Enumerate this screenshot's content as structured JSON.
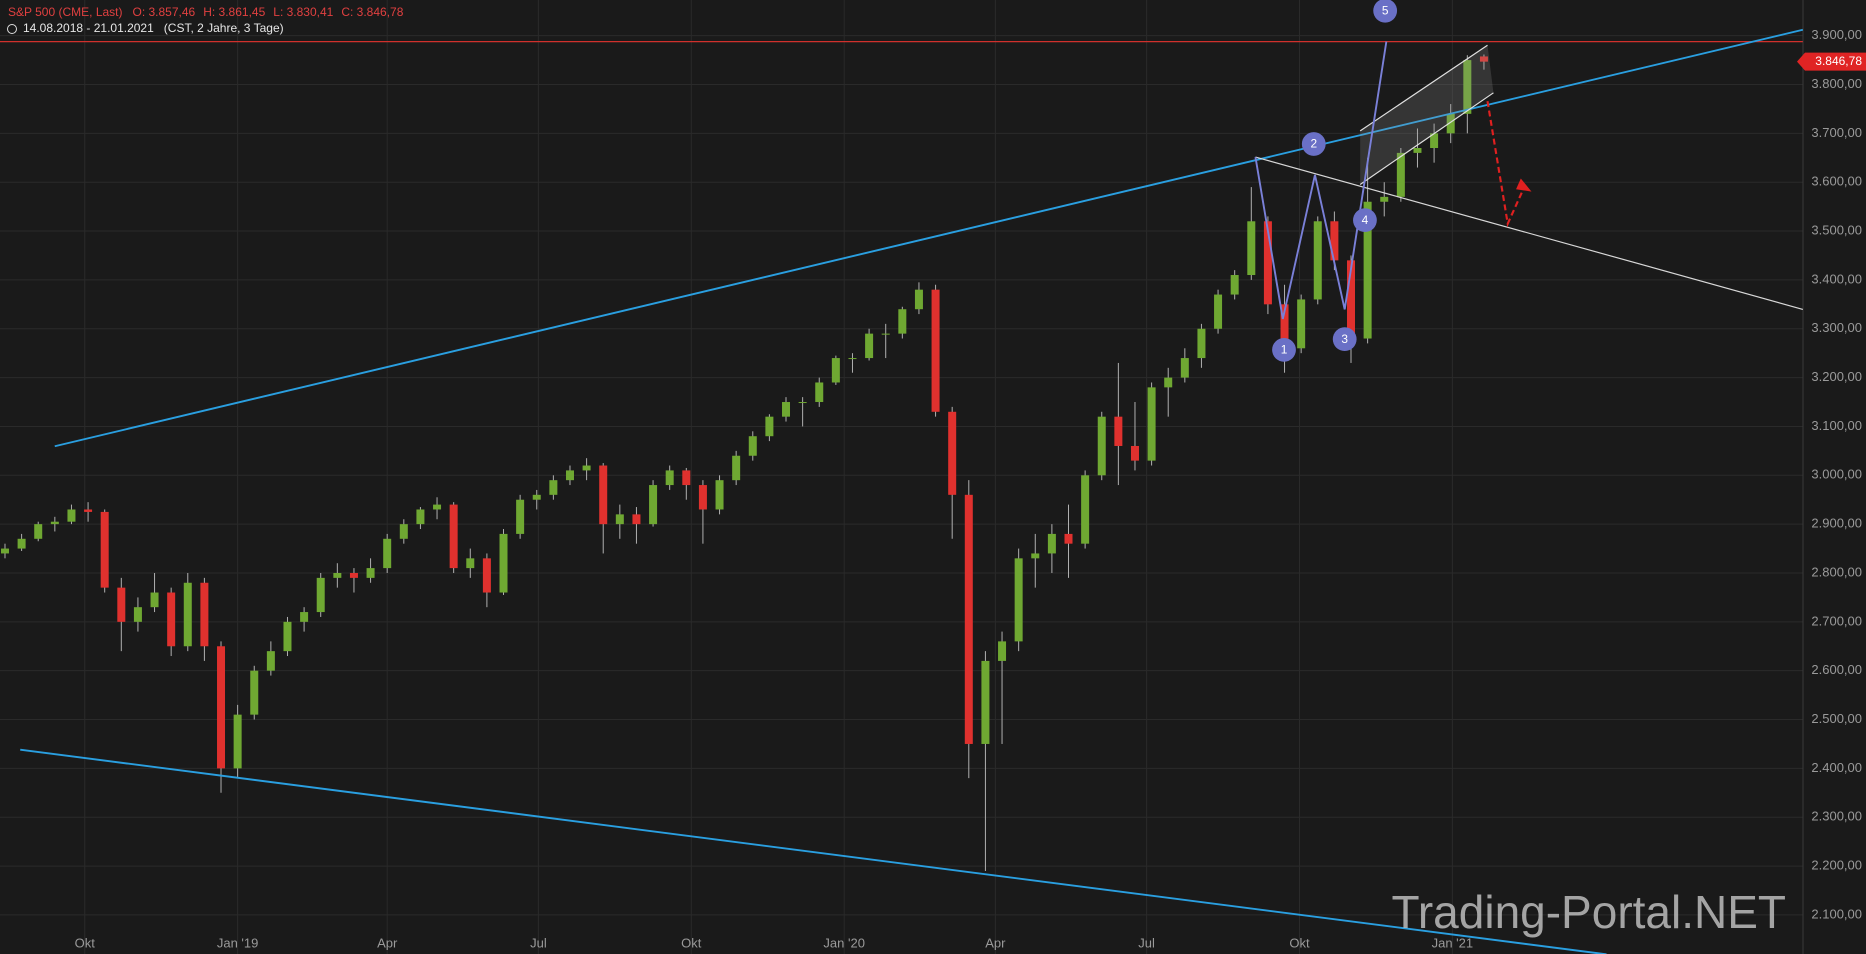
{
  "header": {
    "instrument": "S&P 500 (CME, Last)",
    "open": "O: 3.857,46",
    "high": "H: 3.861,45",
    "low": "L: 3.830,41",
    "close": "C: 3.846,78",
    "range": "14.08.2018 - 21.01.2021",
    "info": "(CST, 2 Jahre, 3 Tage)"
  },
  "chart_data": {
    "type": "candlestick",
    "x": [
      0,
      10,
      20,
      30,
      40,
      50,
      60,
      70,
      80,
      90,
      100,
      110,
      120,
      130,
      140,
      150,
      160,
      170,
      180,
      190,
      200,
      210,
      220,
      230,
      240,
      250,
      260,
      270,
      280,
      290,
      300,
      310,
      320,
      330,
      340,
      350,
      360,
      370,
      380,
      390,
      400,
      410,
      420,
      430,
      440,
      450,
      460,
      470,
      480,
      490,
      500,
      510,
      520,
      530,
      540,
      550,
      560,
      570,
      580,
      590,
      600,
      610,
      620,
      630,
      640,
      650,
      660,
      670,
      680,
      690,
      700,
      710,
      720,
      730,
      740,
      750,
      760,
      770,
      780,
      790,
      800,
      810,
      820,
      830,
      840,
      850,
      860,
      870,
      880,
      890
    ],
    "open": [
      2840,
      2850,
      2870,
      2900,
      2905,
      2930,
      2925,
      2770,
      2700,
      2730,
      2760,
      2650,
      2780,
      2650,
      2400,
      2510,
      2600,
      2640,
      2700,
      2720,
      2790,
      2800,
      2790,
      2810,
      2870,
      2900,
      2930,
      2940,
      2810,
      2830,
      2760,
      2880,
      2950,
      2960,
      2990,
      3010,
      3020,
      2900,
      2920,
      2900,
      2980,
      3010,
      2980,
      2930,
      2990,
      3040,
      3080,
      3120,
      3150,
      3150,
      3190,
      3240,
      3240,
      3290,
      3290,
      3340,
      3380,
      3130,
      2960,
      2450,
      2620,
      2660,
      2830,
      2840,
      2880,
      2860,
      3000,
      3120,
      3060,
      3030,
      3180,
      3200,
      3240,
      3300,
      3370,
      3410,
      3520,
      3350,
      3260,
      3360,
      3520,
      3440,
      3280,
      3560,
      3570,
      3660,
      3670,
      3700,
      3740,
      3857.46
    ],
    "high": [
      2860,
      2880,
      2905,
      2915,
      2940,
      2945,
      2930,
      2790,
      2750,
      2800,
      2770,
      2800,
      2790,
      2660,
      2530,
      2610,
      2660,
      2710,
      2730,
      2800,
      2820,
      2810,
      2830,
      2880,
      2910,
      2935,
      2955,
      2945,
      2850,
      2840,
      2890,
      2960,
      2970,
      3000,
      3020,
      3035,
      3025,
      2940,
      2935,
      2990,
      3020,
      3015,
      2990,
      3000,
      3050,
      3090,
      3125,
      3160,
      3160,
      3200,
      3245,
      3250,
      3300,
      3310,
      3345,
      3395,
      3390,
      3140,
      2990,
      2640,
      2680,
      2850,
      2880,
      2900,
      2940,
      3010,
      3130,
      3230,
      3150,
      3190,
      3220,
      3260,
      3310,
      3380,
      3420,
      3590,
      3530,
      3390,
      3370,
      3530,
      3540,
      3450,
      3650,
      3600,
      3670,
      3710,
      3720,
      3760,
      3860,
      3861.45
    ],
    "low": [
      2830,
      2845,
      2865,
      2885,
      2900,
      2905,
      2760,
      2640,
      2680,
      2720,
      2630,
      2640,
      2620,
      2350,
      2380,
      2500,
      2590,
      2630,
      2680,
      2710,
      2770,
      2760,
      2780,
      2800,
      2860,
      2890,
      2910,
      2800,
      2790,
      2730,
      2755,
      2870,
      2930,
      2950,
      2980,
      2990,
      2840,
      2870,
      2860,
      2895,
      2970,
      2950,
      2860,
      2920,
      2980,
      3030,
      3070,
      3110,
      3100,
      3140,
      3185,
      3210,
      3235,
      3240,
      3280,
      3330,
      3120,
      2870,
      2380,
      2190,
      2450,
      2640,
      2770,
      2800,
      2790,
      2850,
      2990,
      2980,
      3010,
      3020,
      3120,
      3190,
      3220,
      3290,
      3360,
      3400,
      3330,
      3210,
      3250,
      3350,
      3420,
      3230,
      3270,
      3530,
      3560,
      3630,
      3640,
      3680,
      3700,
      3830.41
    ],
    "close": [
      2850,
      2870,
      2900,
      2905,
      2930,
      2925,
      2770,
      2700,
      2730,
      2760,
      2650,
      2780,
      2650,
      2400,
      2510,
      2600,
      2640,
      2700,
      2720,
      2790,
      2800,
      2790,
      2810,
      2870,
      2900,
      2930,
      2940,
      2810,
      2830,
      2760,
      2880,
      2950,
      2960,
      2990,
      3010,
      3020,
      2900,
      2920,
      2900,
      2980,
      3010,
      2980,
      2930,
      2990,
      3040,
      3080,
      3120,
      3150,
      3150,
      3190,
      3240,
      3240,
      3290,
      3290,
      3340,
      3380,
      3130,
      2960,
      2450,
      2620,
      2660,
      2830,
      2840,
      2880,
      2860,
      3000,
      3120,
      3060,
      3030,
      3180,
      3200,
      3240,
      3300,
      3370,
      3410,
      3520,
      3350,
      3260,
      3360,
      3520,
      3440,
      3280,
      3560,
      3570,
      3660,
      3670,
      3700,
      3740,
      3850,
      3846.78
    ],
    "up_color": "#6fa832",
    "down_color": "#e0312e",
    "xlim": [
      -3,
      1082
    ],
    "xticks": [
      {
        "value": 48,
        "label": "Okt"
      },
      {
        "value": 140,
        "label": "Jan '19"
      },
      {
        "value": 230,
        "label": "Apr"
      },
      {
        "value": 321,
        "label": "Jul"
      },
      {
        "value": 413,
        "label": "Okt"
      },
      {
        "value": 505,
        "label": "Jan '20"
      },
      {
        "value": 596,
        "label": "Apr"
      },
      {
        "value": 687,
        "label": "Jul"
      },
      {
        "value": 779,
        "label": "Okt"
      },
      {
        "value": 871,
        "label": "Jan '21"
      }
    ],
    "ylim": [
      2020,
      3973
    ],
    "yticks": [
      {
        "value": 2100,
        "label": "2.100,00"
      },
      {
        "value": 2200,
        "label": "2.200,00"
      },
      {
        "value": 2300,
        "label": "2.300,00"
      },
      {
        "value": 2400,
        "label": "2.400,00"
      },
      {
        "value": 2500,
        "label": "2.500,00"
      },
      {
        "value": 2600,
        "label": "2.600,00"
      },
      {
        "value": 2700,
        "label": "2.700,00"
      },
      {
        "value": 2800,
        "label": "2.800,00"
      },
      {
        "value": 2900,
        "label": "2.900,00"
      },
      {
        "value": 3000,
        "label": "3.000,00"
      },
      {
        "value": 3100,
        "label": "3.100,00"
      },
      {
        "value": 3200,
        "label": "3.200,00"
      },
      {
        "value": 3300,
        "label": "3.300,00"
      },
      {
        "value": 3400,
        "label": "3.400,00"
      },
      {
        "value": 3500,
        "label": "3.500,00"
      },
      {
        "value": 3600,
        "label": "3.600,00"
      },
      {
        "value": 3700,
        "label": "3.700,00"
      },
      {
        "value": 3800,
        "label": "3.800,00"
      },
      {
        "value": 3900,
        "label": "3.900,00"
      }
    ],
    "grid": true,
    "last_price_label": "3.846,78"
  },
  "annotations": {
    "wave_labels": [
      "1",
      "2",
      "3",
      "4",
      "5"
    ],
    "watermark": "Trading-Portal.NET"
  }
}
